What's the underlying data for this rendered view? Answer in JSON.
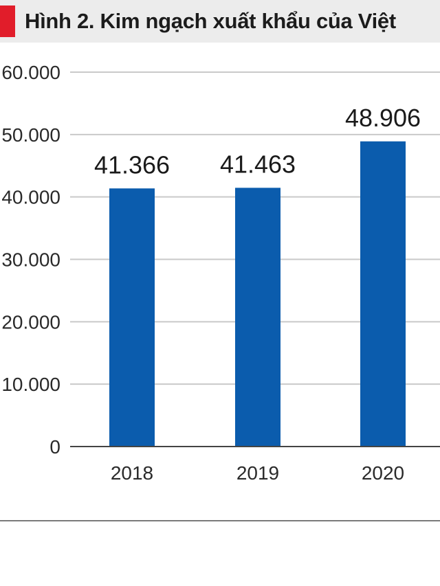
{
  "title": "Hình 2. Kim ngạch xuất khẩu của Việt",
  "colors": {
    "accent": "#e11d2a",
    "bar": "#0b5cad",
    "grid": "#c9c9c9",
    "axis": "#444444",
    "title_bg": "#ececec"
  },
  "chart_data": {
    "type": "bar",
    "title": "Hình 2. Kim ngạch xuất khẩu của Việt",
    "xlabel": "",
    "ylabel": "",
    "categories": [
      "2018",
      "2019",
      "2020"
    ],
    "values": [
      41366,
      41463,
      48906
    ],
    "value_labels": [
      "41.366",
      "41.463",
      "48.906"
    ],
    "ylim": [
      0,
      60000
    ],
    "yticks": [
      0,
      10000,
      20000,
      30000,
      40000,
      50000,
      60000
    ],
    "ytick_labels": [
      "0",
      "10.000",
      "20.000",
      "30.000",
      "40.000",
      "50.000",
      "60.000"
    ],
    "grid": true,
    "legend": "none"
  }
}
